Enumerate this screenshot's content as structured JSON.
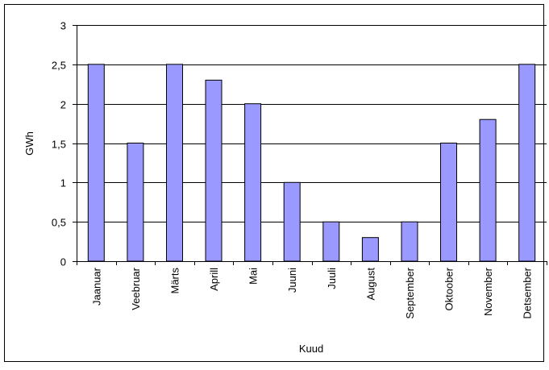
{
  "chart_data": {
    "type": "bar",
    "title": "",
    "xlabel": "Kuud",
    "ylabel": "GWh",
    "categories": [
      "Jaanuar",
      "Veebruar",
      "Märts",
      "Aprill",
      "Mai",
      "Juuni",
      "Juuli",
      "August",
      "September",
      "Oktoober",
      "November",
      "Detsember"
    ],
    "values": [
      2.5,
      1.5,
      2.5,
      2.3,
      2.0,
      1.0,
      0.5,
      0.3,
      0.5,
      1.5,
      1.8,
      2.5
    ],
    "ylim": [
      0,
      3
    ],
    "yticks": [
      0,
      0.5,
      1,
      1.5,
      2,
      2.5,
      3
    ],
    "ytick_labels": [
      "0",
      "0,5",
      "1",
      "1,5",
      "2",
      "2,5",
      "3"
    ],
    "grid": true,
    "legend": "none",
    "colors": {
      "bar_fill": "#9999ff",
      "bar_stroke": "#000000",
      "grid": "#000000",
      "frame": "#000000",
      "background": "#ffffff"
    }
  }
}
